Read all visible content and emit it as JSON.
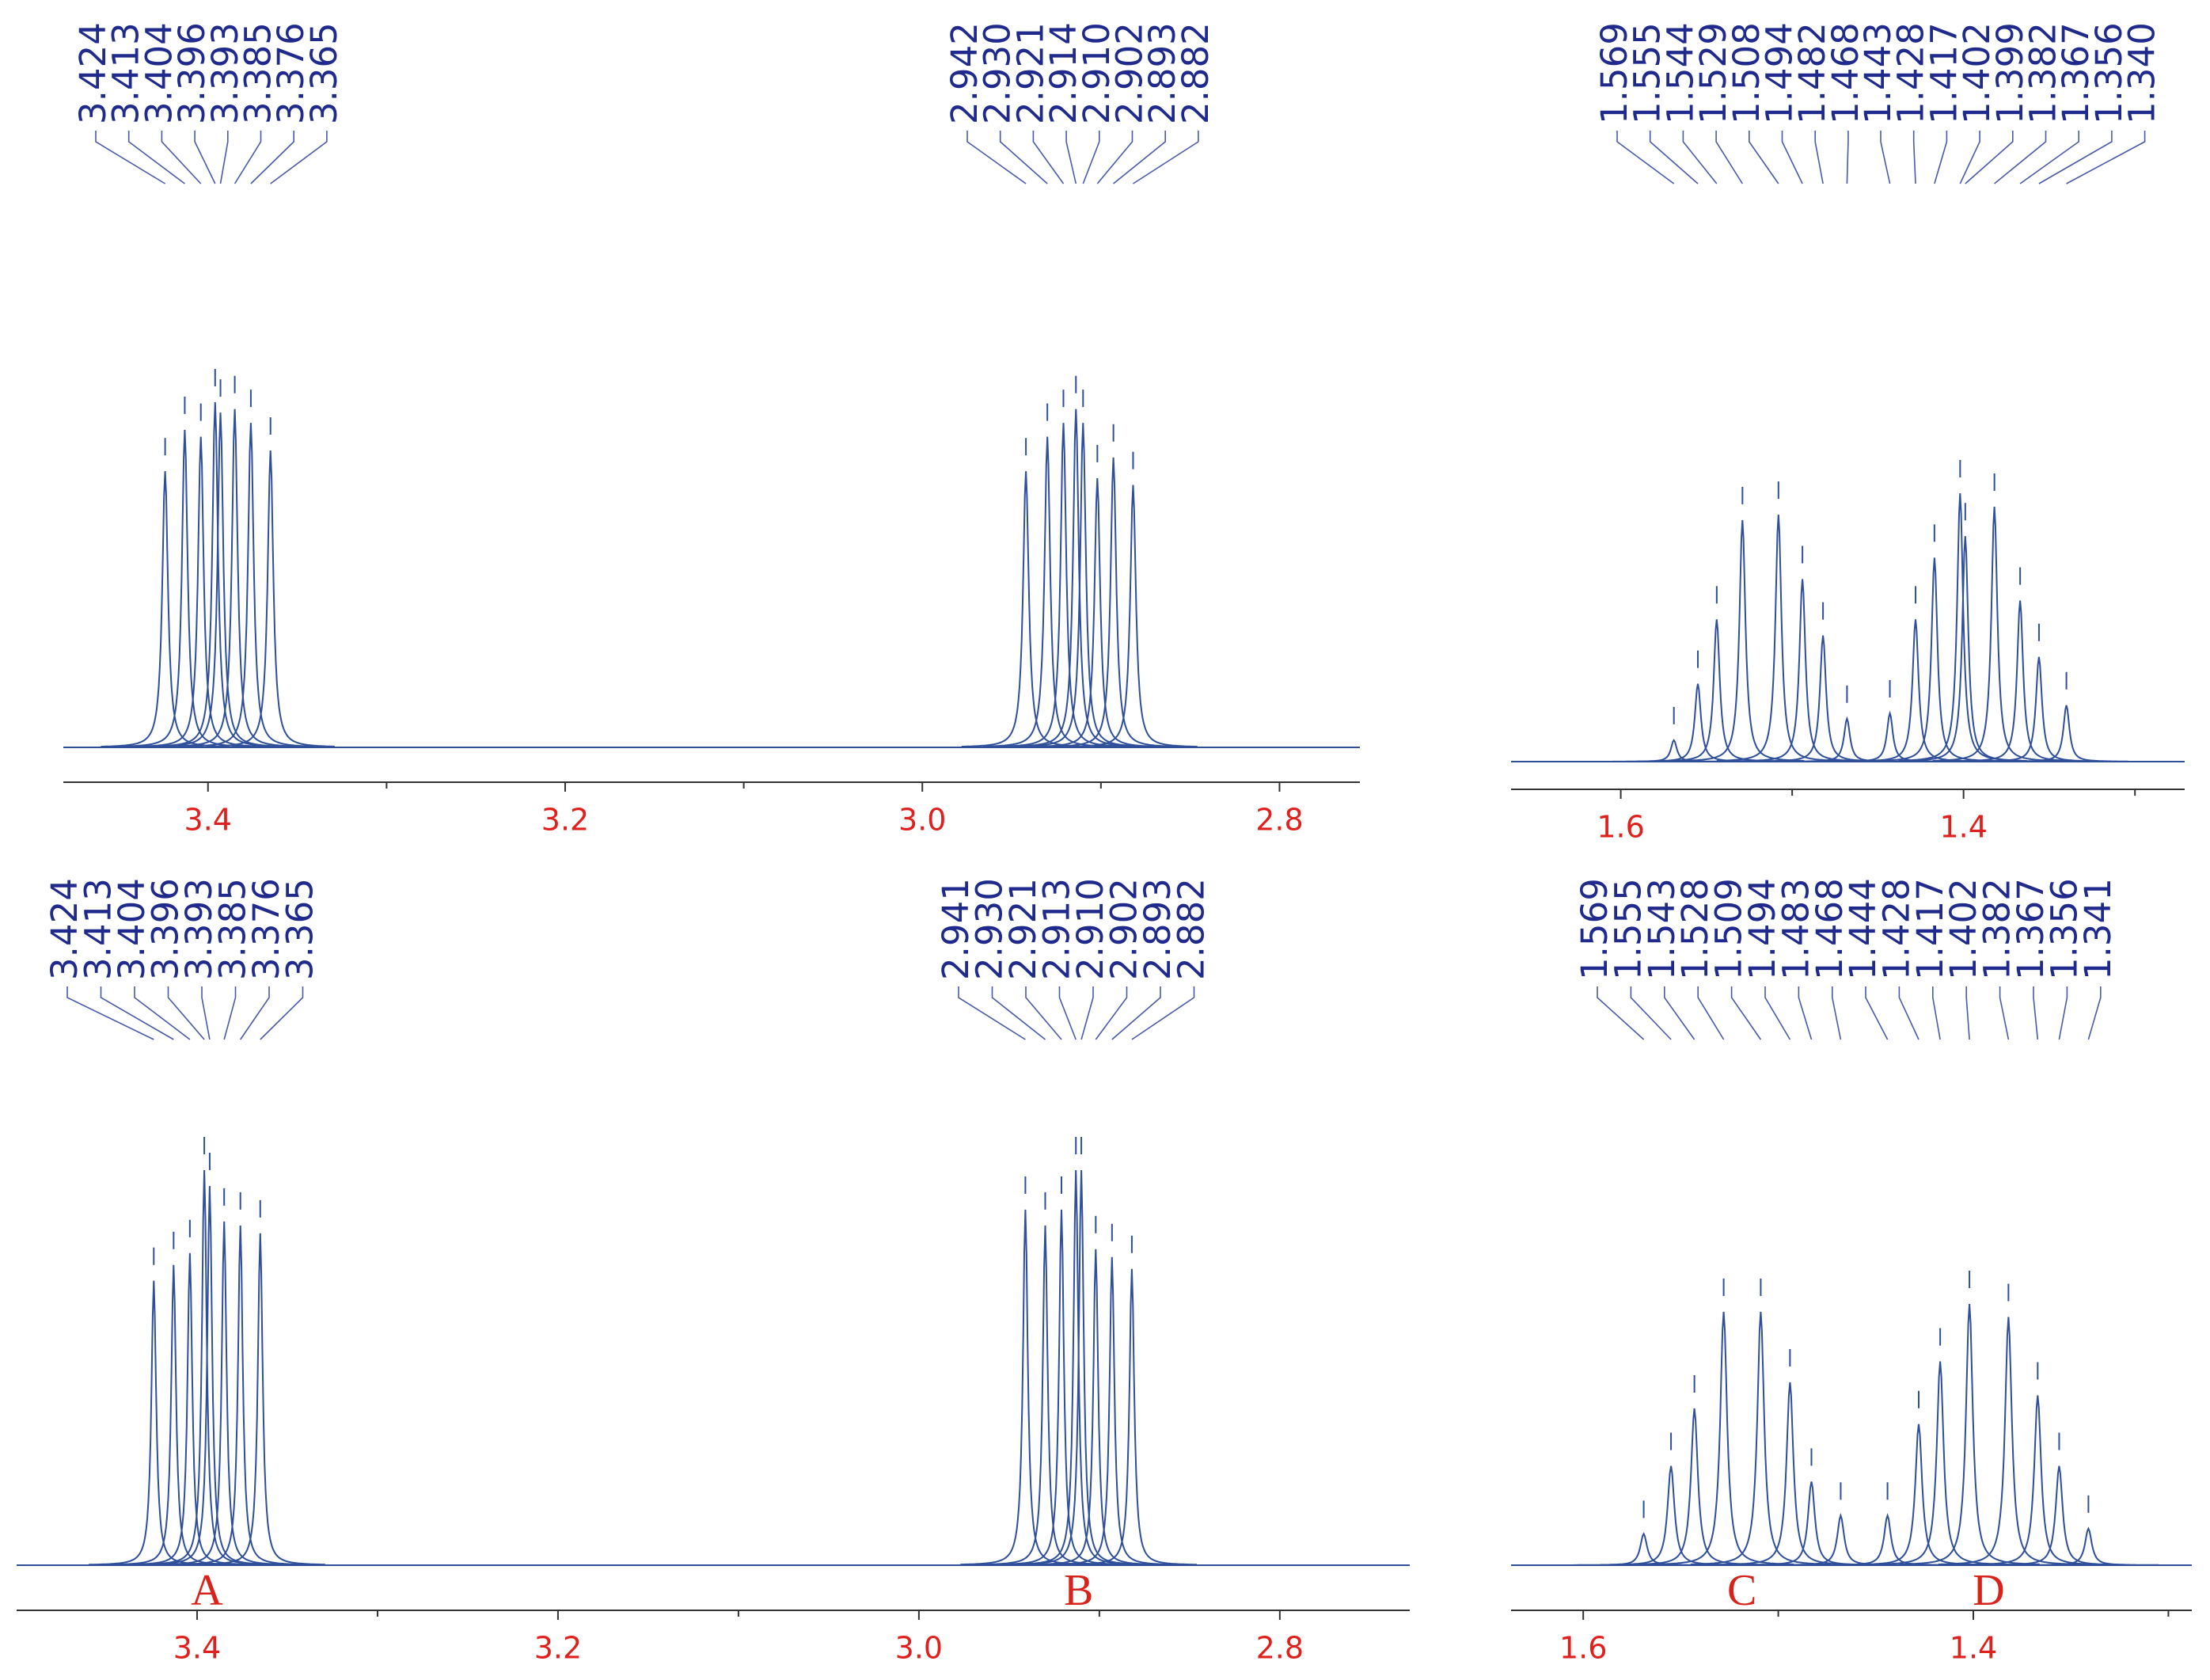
{
  "chart_data": [
    {
      "type": "nmr",
      "xlim": [
        3.481,
        2.755
      ],
      "xticks": [
        3.4,
        3.2,
        {
          "value": 3,
          "label": "3.0"
        },
        2.8
      ],
      "minor_xticks": [
        3.3,
        3.1,
        2.9
      ],
      "color": "#2f4f9a",
      "multiplets": [
        {
          "peaks": [
            3.424,
            3.413,
            3.404,
            3.396,
            3.393,
            3.385,
            3.376,
            3.365
          ],
          "intensities": [
            0.8,
            0.92,
            0.9,
            1.0,
            0.97,
            0.98,
            0.94,
            0.86
          ]
        },
        {
          "peaks": [
            2.942,
            {
              "value": 2.93,
              "label": "2.930"
            },
            2.921,
            2.914,
            {
              "value": 2.91,
              "label": "2.910"
            },
            2.902,
            2.893,
            2.882
          ],
          "intensities": [
            0.8,
            0.9,
            0.94,
            0.98,
            0.94,
            0.78,
            0.84,
            0.76
          ]
        }
      ]
    },
    {
      "type": "nmr",
      "xlim": [
        1.664,
        1.271
      ],
      "xticks": [
        1.6,
        1.4
      ],
      "minor_xticks": [
        1.5,
        1.3
      ],
      "color": "#2f4f9a",
      "multiplets": [
        {
          "peaks": [
            1.569,
            1.555,
            1.544,
            1.529,
            1.508,
            1.494,
            1.482,
            1.468
          ],
          "intensities": [
            0.08,
            0.29,
            0.53,
            0.9,
            0.92,
            0.68,
            0.47,
            0.16
          ]
        },
        {
          "peaks": [
            1.443,
            1.428,
            1.417,
            1.402,
            1.399,
            1.382,
            1.367,
            1.356,
            {
              "value": 1.34,
              "label": "1.340"
            }
          ],
          "intensities": [
            0.18,
            0.53,
            0.76,
            1.0,
            0.84,
            0.95,
            0.6,
            0.39,
            0.21
          ]
        }
      ]
    },
    {
      "type": "nmr",
      "xlim": [
        3.5,
        2.728
      ],
      "xticks": [
        3.4,
        3.2,
        {
          "value": 3,
          "label": "3.0"
        },
        2.8
      ],
      "minor_xticks": [
        3.3,
        3.1,
        2.9
      ],
      "color": "#2f4f9a",
      "multiplets": [
        {
          "label": "A",
          "peaks": [
            3.424,
            3.413,
            3.404,
            3.396,
            3.393,
            3.385,
            3.376,
            3.365
          ],
          "intensities": [
            0.72,
            0.76,
            0.79,
            1.0,
            0.96,
            0.87,
            0.86,
            0.84
          ]
        },
        {
          "label": "B",
          "peaks": [
            2.941,
            {
              "value": 2.93,
              "label": "2.930"
            },
            2.921,
            2.913,
            {
              "value": 2.91,
              "label": "2.910"
            },
            2.902,
            2.893,
            2.882
          ],
          "intensities": [
            0.9,
            0.86,
            0.9,
            1.0,
            1.0,
            0.8,
            0.78,
            0.75
          ]
        }
      ]
    },
    {
      "type": "nmr",
      "xlim": [
        1.637,
        1.288
      ],
      "xticks": [
        1.6,
        1.4
      ],
      "minor_xticks": [
        1.5,
        1.3
      ],
      "color": "#2f4f9a",
      "multiplets": [
        {
          "label": "C",
          "peaks": [
            1.569,
            1.555,
            1.543,
            1.528,
            1.509,
            1.494,
            1.483,
            1.468
          ],
          "intensities": [
            0.12,
            0.38,
            0.6,
            0.97,
            0.97,
            0.7,
            0.32,
            0.19
          ]
        },
        {
          "label": "D",
          "peaks": [
            1.444,
            1.428,
            1.417,
            1.402,
            1.382,
            1.367,
            1.356,
            1.341
          ],
          "intensities": [
            0.19,
            0.54,
            0.78,
            1.0,
            0.95,
            0.65,
            0.38,
            0.14
          ]
        }
      ]
    }
  ]
}
